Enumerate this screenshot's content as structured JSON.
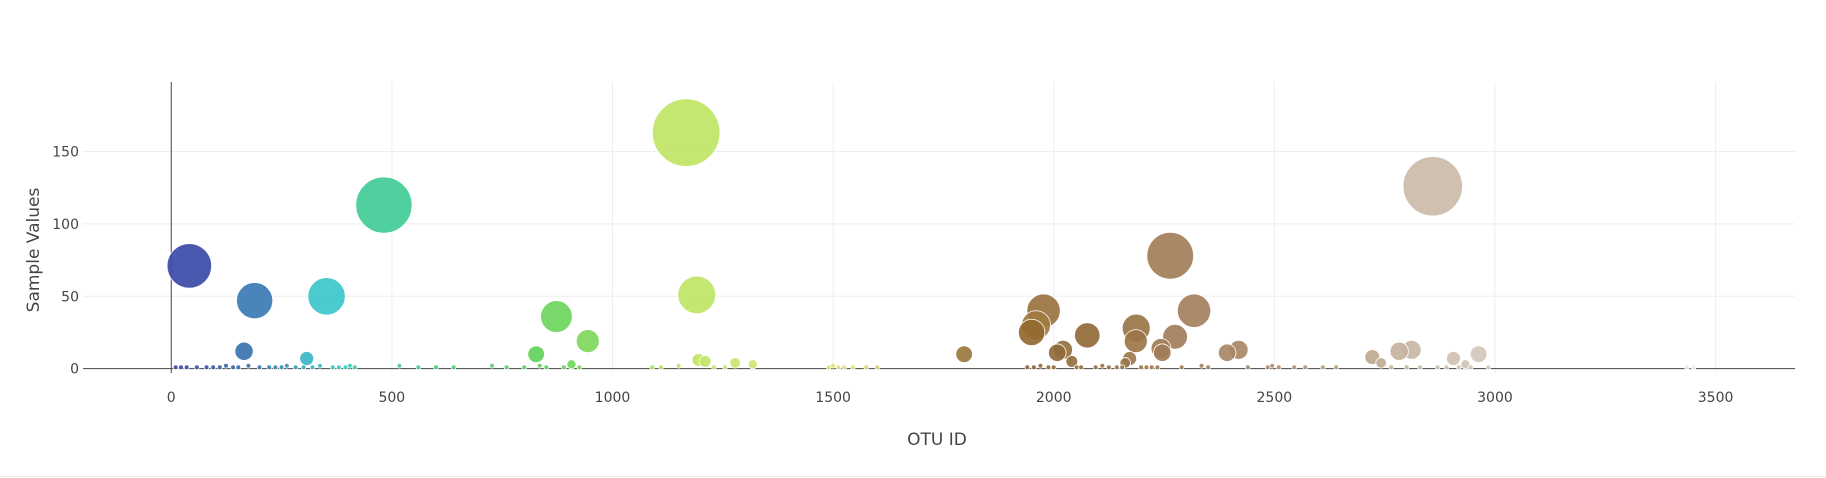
{
  "chart_data": {
    "type": "scatter",
    "subtype": "bubble",
    "title": "",
    "xlabel": "OTU ID",
    "ylabel": "Sample Values",
    "xlim": [
      -200,
      3680
    ],
    "ylim": [
      -3,
      198
    ],
    "x_ticks": [
      0,
      500,
      1000,
      1500,
      2000,
      2500,
      3000,
      3500
    ],
    "y_ticks": [
      0,
      50,
      100,
      150
    ],
    "grid": true,
    "legend": "none",
    "colorscale": "earth",
    "points": [
      {
        "x": 41,
        "y": 71,
        "color": "#3b4ba8"
      },
      {
        "x": 189,
        "y": 47,
        "color": "#3a7bb4"
      },
      {
        "x": 352,
        "y": 50,
        "color": "#3cc5cb"
      },
      {
        "x": 482,
        "y": 113,
        "color": "#41cc96"
      },
      {
        "x": 1167,
        "y": 163,
        "color": "#bfe565"
      },
      {
        "x": 2264,
        "y": 78,
        "color": "#a27e58"
      },
      {
        "x": 2859,
        "y": 126,
        "color": "#ccbba9"
      },
      {
        "x": 873,
        "y": 36,
        "color": "#6cd55c"
      },
      {
        "x": 944,
        "y": 19,
        "color": "#7fd85c"
      },
      {
        "x": 1191,
        "y": 51,
        "color": "#bfe565"
      },
      {
        "x": 1977,
        "y": 40,
        "color": "#9a7340"
      },
      {
        "x": 1960,
        "y": 30,
        "color": "#a27a3e"
      },
      {
        "x": 1950,
        "y": 25,
        "color": "#93692f"
      },
      {
        "x": 2076,
        "y": 23,
        "color": "#936a38"
      },
      {
        "x": 2187,
        "y": 28,
        "color": "#9a7547"
      },
      {
        "x": 2186,
        "y": 19,
        "color": "#9c7648"
      },
      {
        "x": 2318,
        "y": 40,
        "color": "#a48060"
      },
      {
        "x": 2275,
        "y": 22,
        "color": "#a27e5a"
      },
      {
        "x": 2243,
        "y": 14,
        "color": "#a07a55"
      },
      {
        "x": 2246,
        "y": 11,
        "color": "#a27c56"
      },
      {
        "x": 2021,
        "y": 13,
        "color": "#95703e"
      },
      {
        "x": 2008,
        "y": 11,
        "color": "#8f6a3a"
      },
      {
        "x": 1797,
        "y": 10,
        "color": "#9a783c"
      },
      {
        "x": 2393,
        "y": 11,
        "color": "#a98766"
      },
      {
        "x": 2419,
        "y": 13,
        "color": "#aa8868"
      },
      {
        "x": 2722,
        "y": 8,
        "color": "#bfa890"
      },
      {
        "x": 2783,
        "y": 12,
        "color": "#c6b29e"
      },
      {
        "x": 2811,
        "y": 13,
        "color": "#c9b8a5"
      },
      {
        "x": 2963,
        "y": 10,
        "color": "#d4c6b8"
      },
      {
        "x": 2906,
        "y": 7,
        "color": "#d0c1b2"
      },
      {
        "x": 165,
        "y": 12,
        "color": "#3a74b0"
      },
      {
        "x": 307,
        "y": 7,
        "color": "#3cb5c4"
      },
      {
        "x": 827,
        "y": 10,
        "color": "#62d25b"
      },
      {
        "x": 907,
        "y": 3,
        "color": "#72d65c"
      },
      {
        "x": 1195,
        "y": 6,
        "color": "#c0e566"
      },
      {
        "x": 1210,
        "y": 5,
        "color": "#c2e567"
      },
      {
        "x": 1278,
        "y": 4,
        "color": "#cae66d"
      },
      {
        "x": 1318,
        "y": 3,
        "color": "#cde76f"
      },
      {
        "x": 2041,
        "y": 5,
        "color": "#93703e"
      },
      {
        "x": 2162,
        "y": 4,
        "color": "#9c7547"
      },
      {
        "x": 2172,
        "y": 7,
        "color": "#9d7749"
      },
      {
        "x": 2742,
        "y": 4,
        "color": "#c1ab94"
      },
      {
        "x": 2933,
        "y": 3,
        "color": "#d1c3b4"
      },
      {
        "x": 10,
        "y": 1,
        "color": "#3b4ba8"
      },
      {
        "x": 22,
        "y": 1,
        "color": "#3b4ba8"
      },
      {
        "x": 35,
        "y": 1,
        "color": "#3b4fa9"
      },
      {
        "x": 58,
        "y": 1,
        "color": "#3b53aa"
      },
      {
        "x": 80,
        "y": 1,
        "color": "#3b58ab"
      },
      {
        "x": 95,
        "y": 1,
        "color": "#3b5cac"
      },
      {
        "x": 110,
        "y": 1,
        "color": "#3a60ad"
      },
      {
        "x": 124,
        "y": 2,
        "color": "#3a64ae"
      },
      {
        "x": 140,
        "y": 1,
        "color": "#3a69af"
      },
      {
        "x": 152,
        "y": 1,
        "color": "#3a6db0"
      },
      {
        "x": 175,
        "y": 2,
        "color": "#3a75b1"
      },
      {
        "x": 200,
        "y": 1,
        "color": "#3a7db3"
      },
      {
        "x": 222,
        "y": 1,
        "color": "#3a85b5"
      },
      {
        "x": 236,
        "y": 1,
        "color": "#3a8ab7"
      },
      {
        "x": 250,
        "y": 1,
        "color": "#3a90b9"
      },
      {
        "x": 262,
        "y": 2,
        "color": "#3a96bb"
      },
      {
        "x": 282,
        "y": 1,
        "color": "#3aa2be"
      },
      {
        "x": 300,
        "y": 1,
        "color": "#3bacc1"
      },
      {
        "x": 320,
        "y": 1,
        "color": "#3bb6c4"
      },
      {
        "x": 337,
        "y": 2,
        "color": "#3bbec7"
      },
      {
        "x": 366,
        "y": 1,
        "color": "#3cc8cc"
      },
      {
        "x": 380,
        "y": 1,
        "color": "#3dcac5"
      },
      {
        "x": 395,
        "y": 1,
        "color": "#3ecbbc"
      },
      {
        "x": 405,
        "y": 2,
        "color": "#3fcbb5"
      },
      {
        "x": 416,
        "y": 1,
        "color": "#3fcbae"
      },
      {
        "x": 517,
        "y": 2,
        "color": "#43cd8f"
      },
      {
        "x": 560,
        "y": 1,
        "color": "#46ce85"
      },
      {
        "x": 600,
        "y": 1,
        "color": "#49cf7d"
      },
      {
        "x": 640,
        "y": 1,
        "color": "#4dd074"
      },
      {
        "x": 727,
        "y": 2,
        "color": "#55d168"
      },
      {
        "x": 760,
        "y": 1,
        "color": "#59d264"
      },
      {
        "x": 800,
        "y": 1,
        "color": "#5dd260"
      },
      {
        "x": 835,
        "y": 2,
        "color": "#64d35d"
      },
      {
        "x": 850,
        "y": 1,
        "color": "#67d45d"
      },
      {
        "x": 890,
        "y": 1,
        "color": "#6ed55c"
      },
      {
        "x": 925,
        "y": 1,
        "color": "#78d75c"
      },
      {
        "x": 1090,
        "y": 1,
        "color": "#a9e05f"
      },
      {
        "x": 1110,
        "y": 1,
        "color": "#b0e260"
      },
      {
        "x": 1150,
        "y": 2,
        "color": "#bbe463"
      },
      {
        "x": 1230,
        "y": 1,
        "color": "#c5e569"
      },
      {
        "x": 1255,
        "y": 1,
        "color": "#c8e66b"
      },
      {
        "x": 1490,
        "y": 1,
        "color": "#dbe27b"
      },
      {
        "x": 1500,
        "y": 2,
        "color": "#dde27c"
      },
      {
        "x": 1512,
        "y": 1,
        "color": "#dee17c"
      },
      {
        "x": 1525,
        "y": 1,
        "color": "#dfe07c"
      },
      {
        "x": 1545,
        "y": 1,
        "color": "#e0de7c"
      },
      {
        "x": 1575,
        "y": 1,
        "color": "#dcd67a"
      },
      {
        "x": 1600,
        "y": 1,
        "color": "#d8ce76"
      },
      {
        "x": 1940,
        "y": 1,
        "color": "#8d6636"
      },
      {
        "x": 1955,
        "y": 1,
        "color": "#8f6837"
      },
      {
        "x": 1970,
        "y": 2,
        "color": "#916a38"
      },
      {
        "x": 1988,
        "y": 1,
        "color": "#936b39"
      },
      {
        "x": 2000,
        "y": 1,
        "color": "#946c3a"
      },
      {
        "x": 2052,
        "y": 1,
        "color": "#956d3c"
      },
      {
        "x": 2062,
        "y": 1,
        "color": "#966e3d"
      },
      {
        "x": 2095,
        "y": 1,
        "color": "#98703e"
      },
      {
        "x": 2110,
        "y": 2,
        "color": "#997240"
      },
      {
        "x": 2125,
        "y": 1,
        "color": "#9a7342"
      },
      {
        "x": 2143,
        "y": 1,
        "color": "#9b7444"
      },
      {
        "x": 2155,
        "y": 1,
        "color": "#9c7545"
      },
      {
        "x": 2198,
        "y": 1,
        "color": "#9d7749"
      },
      {
        "x": 2210,
        "y": 1,
        "color": "#9e784b"
      },
      {
        "x": 2222,
        "y": 1,
        "color": "#9f794d"
      },
      {
        "x": 2235,
        "y": 1,
        "color": "#a07a4f"
      },
      {
        "x": 2290,
        "y": 1,
        "color": "#a37e55"
      },
      {
        "x": 2335,
        "y": 2,
        "color": "#a58160"
      },
      {
        "x": 2350,
        "y": 1,
        "color": "#a68262"
      },
      {
        "x": 2440,
        "y": 1,
        "color": "#ab8a6a"
      },
      {
        "x": 2485,
        "y": 1,
        "color": "#ae8e6e"
      },
      {
        "x": 2495,
        "y": 2,
        "color": "#af8f70"
      },
      {
        "x": 2510,
        "y": 1,
        "color": "#b09172"
      },
      {
        "x": 2545,
        "y": 1,
        "color": "#b29476"
      },
      {
        "x": 2570,
        "y": 1,
        "color": "#b49779"
      },
      {
        "x": 2610,
        "y": 1,
        "color": "#b69b7e"
      },
      {
        "x": 2640,
        "y": 1,
        "color": "#b89f83"
      },
      {
        "x": 2765,
        "y": 1,
        "color": "#c4af9a"
      },
      {
        "x": 2800,
        "y": 1,
        "color": "#c7b5a1"
      },
      {
        "x": 2830,
        "y": 1,
        "color": "#cab9a7"
      },
      {
        "x": 2870,
        "y": 1,
        "color": "#cdbdab"
      },
      {
        "x": 2890,
        "y": 1,
        "color": "#cebfae"
      },
      {
        "x": 2918,
        "y": 1,
        "color": "#d0c2b1"
      },
      {
        "x": 2945,
        "y": 1,
        "color": "#d2c4b5"
      },
      {
        "x": 2985,
        "y": 1,
        "color": "#d6c8ba"
      },
      {
        "x": 3435,
        "y": 1,
        "color": "#f0ebe3"
      },
      {
        "x": 3450,
        "y": 1,
        "color": "#f2ede6"
      }
    ]
  }
}
